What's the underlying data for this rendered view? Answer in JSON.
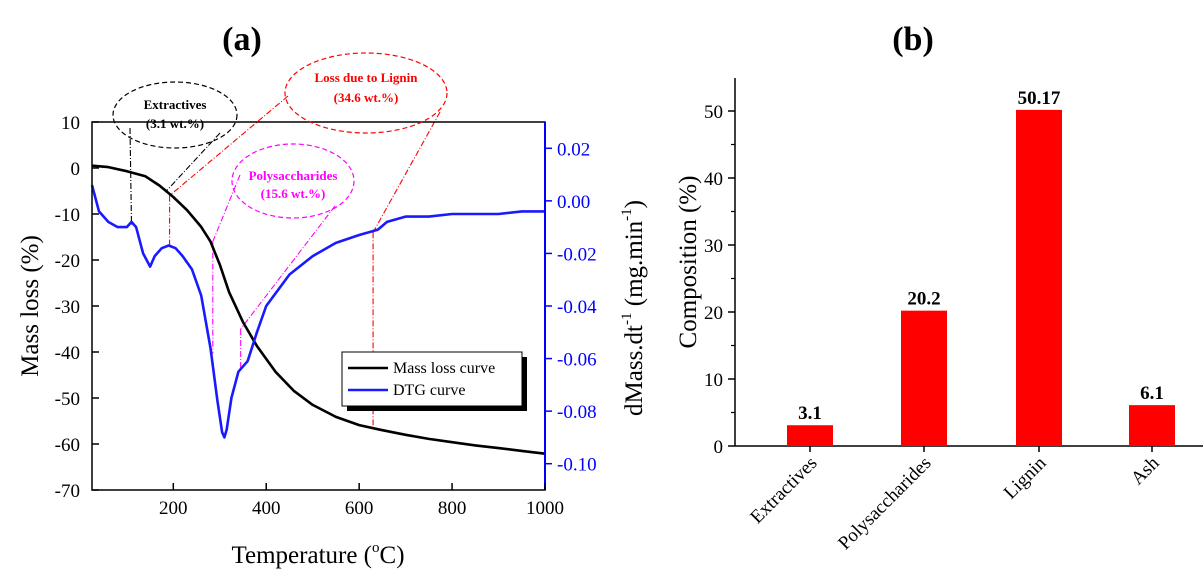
{
  "chart_data": [
    {
      "panel": "(a)",
      "type": "line",
      "xlabel": "Temperature (",
      "xlabel_sup": "o",
      "xlabel_tail": "C)",
      "ylabel": "Mass loss (%)",
      "ylabel_right": "dMass.dt",
      "ylabel_right_sup": "-1",
      "ylabel_right_tail": " (mg.min",
      "ylabel_right_sup2": "-1",
      "ylabel_right_end": ")",
      "xlim": [
        25,
        1000
      ],
      "ylim": [
        -70,
        10
      ],
      "ylim_right": [
        -0.11,
        0.03
      ],
      "xticks": [
        200,
        400,
        600,
        800,
        1000
      ],
      "yticks": [
        10,
        0,
        -10,
        -20,
        -30,
        -40,
        -50,
        -60,
        -70
      ],
      "yticks_right": [
        0.02,
        0.0,
        -0.02,
        -0.04,
        -0.06,
        -0.08,
        -0.1
      ],
      "yticks_right_labels": [
        "0.02",
        "0.00",
        "-0.02",
        "-0.04",
        "-0.06",
        "-0.08",
        "-0.10"
      ],
      "legend_position": "lower-right",
      "series": [
        {
          "name": "Mass loss curve",
          "axis": "left",
          "color": "#000000",
          "x": [
            25,
            60,
            100,
            140,
            170,
            200,
            230,
            260,
            280,
            300,
            320,
            350,
            380,
            420,
            460,
            500,
            550,
            600,
            650,
            700,
            750,
            800,
            850,
            900,
            950,
            1000
          ],
          "y": [
            0.5,
            0.2,
            -0.7,
            -1.8,
            -3.8,
            -6.3,
            -9.2,
            -12.8,
            -16.0,
            -21.0,
            -27.0,
            -33.5,
            -38.7,
            -44.3,
            -48.5,
            -51.5,
            -54.1,
            -55.9,
            -57.0,
            -58.0,
            -58.9,
            -59.6,
            -60.3,
            -60.9,
            -61.5,
            -62.1
          ]
        },
        {
          "name": "DTG curve",
          "axis": "right",
          "color": "#1a1aff",
          "x": [
            25,
            40,
            60,
            80,
            100,
            110,
            120,
            135,
            150,
            160,
            175,
            190,
            205,
            220,
            240,
            260,
            280,
            295,
            305,
            310,
            315,
            325,
            340,
            360,
            380,
            400,
            450,
            500,
            550,
            600,
            640,
            660,
            680,
            700,
            750,
            800,
            850,
            900,
            950,
            1000
          ],
          "y": [
            0.006,
            -0.004,
            -0.008,
            -0.01,
            -0.01,
            -0.008,
            -0.01,
            -0.02,
            -0.025,
            -0.021,
            -0.018,
            -0.017,
            -0.018,
            -0.021,
            -0.026,
            -0.036,
            -0.056,
            -0.076,
            -0.088,
            -0.09,
            -0.087,
            -0.075,
            -0.065,
            -0.061,
            -0.05,
            -0.04,
            -0.028,
            -0.021,
            -0.016,
            -0.013,
            -0.011,
            -0.008,
            -0.007,
            -0.006,
            -0.006,
            -0.005,
            -0.005,
            -0.005,
            -0.004,
            -0.004
          ]
        }
      ],
      "annotations": [
        {
          "lines": [
            "Extractives",
            "(3.1 wt.%)"
          ],
          "color": "#000000"
        },
        {
          "lines": [
            "Loss due to Lignin",
            "(34.6 wt.%)"
          ],
          "color": "#ff0000"
        },
        {
          "lines": [
            "Polysaccharides",
            "(15.6 wt.%)"
          ],
          "color": "#ff00ff"
        }
      ]
    },
    {
      "panel": "(b)",
      "type": "bar",
      "ylabel": "Composition (%)",
      "categories": [
        "Extractives",
        "Polysaccharides",
        "Lignin",
        "Ash"
      ],
      "values": [
        3.1,
        20.2,
        50.17,
        6.1
      ],
      "value_labels": [
        "3.1",
        "20.2",
        "50.17",
        "6.1"
      ],
      "ylim": [
        0,
        55
      ],
      "yticks": [
        0,
        10,
        20,
        30,
        40,
        50
      ],
      "bar_color": "#ff0000"
    }
  ]
}
